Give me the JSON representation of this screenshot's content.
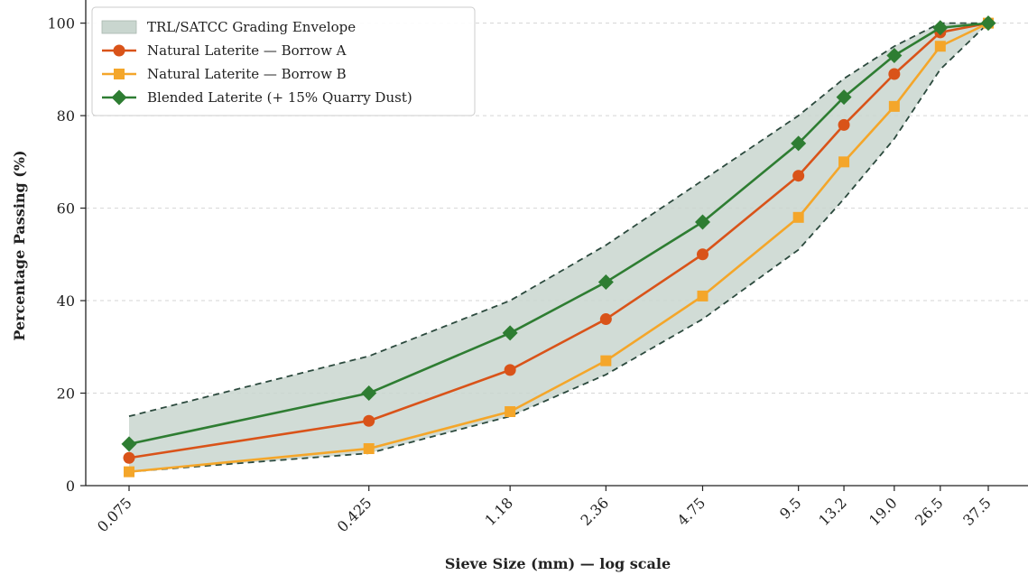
{
  "chart_data": {
    "type": "line",
    "xscale": "log",
    "x": [
      0.075,
      0.425,
      1.18,
      2.36,
      4.75,
      9.5,
      13.2,
      19.0,
      26.5,
      37.5
    ],
    "x_tick_labels": [
      "0.075",
      "0.425",
      "1.18",
      "2.36",
      "4.75",
      "9.5",
      "13.2",
      "19.0",
      "26.5",
      "37.5"
    ],
    "xlabel": "Sieve Size (mm) — log scale",
    "ylabel": "Percentage Passing (%)",
    "ylim": [
      0,
      105
    ],
    "y_ticks": [
      0,
      20,
      40,
      60,
      80,
      100
    ],
    "grid": "y-dashed",
    "legend_position": "top-left",
    "envelope": {
      "name": "TRL/SATCC Grading Envelope",
      "upper": [
        15,
        28,
        40,
        52,
        66,
        80,
        88,
        95,
        100,
        100
      ],
      "lower": [
        3,
        7,
        15,
        24,
        36,
        51,
        62,
        75,
        90,
        100
      ],
      "fill_color": "#c9d6cf",
      "line_color": "#2c4a3e"
    },
    "series": [
      {
        "name": "Natural Laterite — Borrow A",
        "values": [
          6,
          14,
          25,
          36,
          50,
          67,
          78,
          89,
          98,
          100
        ],
        "color": "#d95319",
        "marker": "circle"
      },
      {
        "name": "Natural Laterite — Borrow B",
        "values": [
          3,
          8,
          16,
          27,
          41,
          58,
          70,
          82,
          95,
          100
        ],
        "color": "#f4a62a",
        "marker": "square"
      },
      {
        "name": "Blended Laterite (+ 15% Quarry Dust)",
        "values": [
          9,
          20,
          33,
          44,
          57,
          74,
          84,
          93,
          99,
          100
        ],
        "color": "#2e7d32",
        "marker": "diamond"
      }
    ]
  }
}
